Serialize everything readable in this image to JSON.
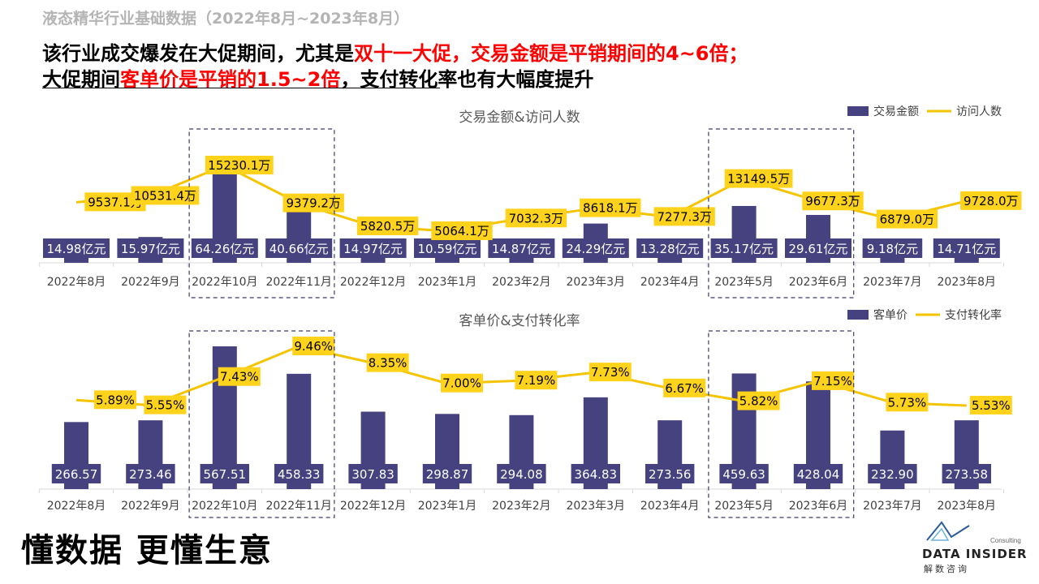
{
  "header": {
    "subtitle": "液态精华行业基础数据（2022年8月~2023年8月）",
    "line1_black": "该行业成交爆发在大促期间，尤其是",
    "line1_red": "双十一大促，交易金额是平销期间的4~6倍；",
    "line2_black_a": "大促期间",
    "line2_red": "客单价是平销的1.5~2倍",
    "line2_black_b": "，支付转化率也有大幅度提升"
  },
  "footer": {
    "slogan": "懂数据 更懂生意",
    "logo_brand": "DATA INSIDER",
    "logo_cn": "解数咨询",
    "logo_consulting": "Consulting"
  },
  "colors": {
    "bar": "#46417f",
    "line": "#f5c400",
    "label_bg_line": "#ffd31c",
    "axis": "#d9d9d9"
  },
  "chart_data": [
    {
      "type": "bar",
      "title": "交易金额&访问人数",
      "categories": [
        "2022年8月",
        "2022年9月",
        "2022年10月",
        "2022年11月",
        "2022年12月",
        "2023年1月",
        "2023年2月",
        "2023年3月",
        "2023年4月",
        "2023年5月",
        "2023年6月",
        "2023年7月",
        "2023年8月"
      ],
      "series": [
        {
          "name": "交易金额",
          "kind": "bar",
          "values": [
            14.98,
            15.97,
            64.26,
            40.66,
            14.97,
            10.59,
            14.87,
            24.29,
            13.28,
            35.17,
            29.61,
            9.18,
            14.71
          ],
          "labels": [
            "14.98亿元",
            "15.97亿元",
            "64.26亿元",
            "40.66亿元",
            "14.97亿元",
            "10.59亿元",
            "14.87亿元",
            "24.29亿元",
            "13.28亿元",
            "35.17亿元",
            "29.61亿元",
            "9.18亿元",
            "14.71亿元"
          ]
        },
        {
          "name": "访问人数",
          "kind": "line",
          "values": [
            9537.1,
            10531.4,
            15230.1,
            9379.2,
            5820.5,
            5064.1,
            7032.3,
            8618.1,
            7277.3,
            13149.5,
            9677.3,
            6879.0,
            9728.0
          ],
          "labels": [
            "9537.1万",
            "10531.4万",
            "15230.1万",
            "9379.2万",
            "5820.5万",
            "5064.1万",
            "7032.3万",
            "8618.1万",
            "7277.3万",
            "13149.5万",
            "9677.3万",
            "6879.0万",
            "9728.0万"
          ]
        }
      ],
      "legend": "top-right",
      "highlight_groups": [
        [
          2,
          3
        ],
        [
          9,
          10
        ]
      ]
    },
    {
      "type": "bar",
      "title": "客单价&支付转化率",
      "categories": [
        "2022年8月",
        "2022年9月",
        "2022年10月",
        "2022年11月",
        "2022年12月",
        "2023年1月",
        "2023年2月",
        "2023年3月",
        "2023年4月",
        "2023年5月",
        "2023年6月",
        "2023年7月",
        "2023年8月"
      ],
      "series": [
        {
          "name": "客单价",
          "kind": "bar",
          "values": [
            266.57,
            273.46,
            567.51,
            458.33,
            307.83,
            298.87,
            294.08,
            364.83,
            273.56,
            459.63,
            428.04,
            232.9,
            273.58
          ],
          "labels": [
            "266.57",
            "273.46",
            "567.51",
            "458.33",
            "307.83",
            "298.87",
            "294.08",
            "364.83",
            "273.56",
            "459.63",
            "428.04",
            "232.90",
            "273.58"
          ]
        },
        {
          "name": "支付转化率",
          "kind": "line",
          "values": [
            5.89,
            5.55,
            7.43,
            9.46,
            8.35,
            7.0,
            7.19,
            7.73,
            6.67,
            5.82,
            7.15,
            5.73,
            5.53
          ],
          "labels": [
            "5.89%",
            "5.55%",
            "7.43%",
            "9.46%",
            "8.35%",
            "7.00%",
            "7.19%",
            "7.73%",
            "6.67%",
            "5.82%",
            "7.15%",
            "5.73%",
            "5.53%"
          ]
        }
      ],
      "legend": "top-right",
      "highlight_groups": [
        [
          2,
          3
        ],
        [
          9,
          10
        ]
      ]
    }
  ]
}
